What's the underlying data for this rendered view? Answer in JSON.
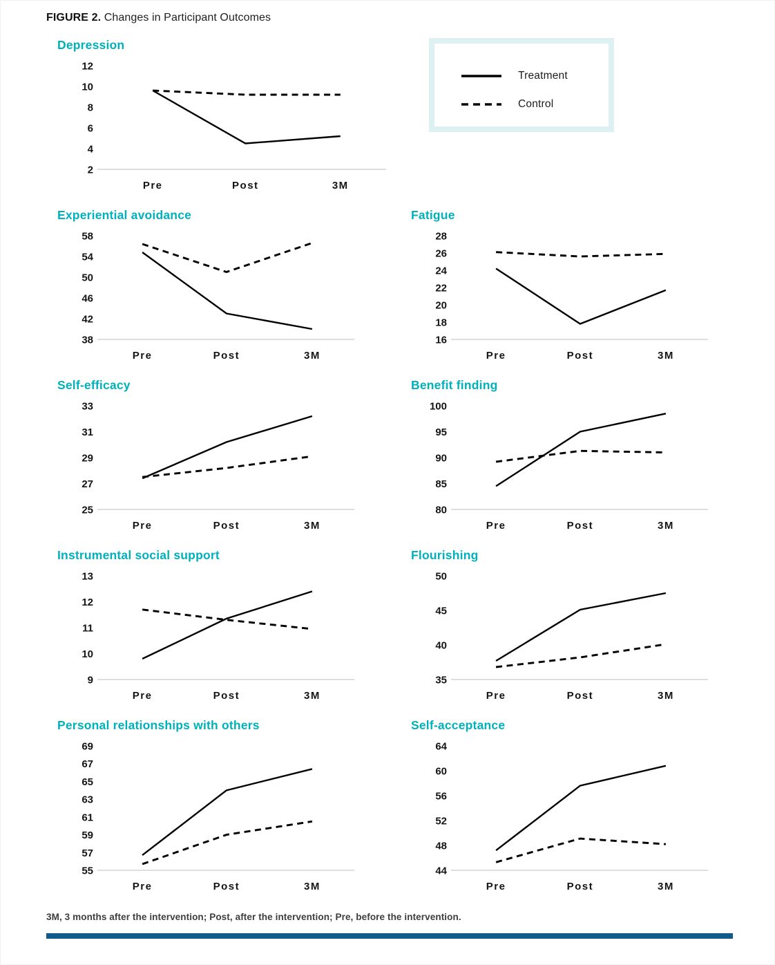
{
  "figure": {
    "label": "FIGURE 2.",
    "title": "Changes in Participant Outcomes"
  },
  "legend": {
    "treatment_label": "Treatment",
    "control_label": "Control"
  },
  "footnote": "3M, 3 months after the intervention; Post, after the intervention; Pre, before the intervention.",
  "colors": {
    "chart_title_accent": "#00b1bc",
    "legend_border": "#ddf0f2",
    "bottom_bar": "#135a8c",
    "series_line": "#000000",
    "axis_line": "#c9c9c9"
  },
  "chart_data": [
    {
      "type": "line",
      "title": "Depression",
      "x": [
        "Pre",
        "Post",
        "3M"
      ],
      "ylim": [
        2,
        12
      ],
      "ytick_step": 2,
      "grid": false,
      "series": [
        {
          "name": "Treatment",
          "style": "solid",
          "values": [
            9.6,
            4.5,
            5.2
          ]
        },
        {
          "name": "Control",
          "style": "dashed",
          "values": [
            9.6,
            9.2,
            9.2
          ]
        }
      ]
    },
    {
      "type": "line",
      "title": "Experiential avoidance",
      "x": [
        "Pre",
        "Post",
        "3M"
      ],
      "ylim": [
        38,
        58
      ],
      "ytick_step": 4,
      "grid": false,
      "series": [
        {
          "name": "Treatment",
          "style": "solid",
          "values": [
            54.8,
            43.0,
            40.0
          ]
        },
        {
          "name": "Control",
          "style": "dashed",
          "values": [
            56.4,
            51.0,
            56.6
          ]
        }
      ]
    },
    {
      "type": "line",
      "title": "Fatigue",
      "x": [
        "Pre",
        "Post",
        "3M"
      ],
      "ylim": [
        16,
        28
      ],
      "ytick_step": 2,
      "grid": false,
      "series": [
        {
          "name": "Treatment",
          "style": "solid",
          "values": [
            24.2,
            17.8,
            21.7
          ]
        },
        {
          "name": "Control",
          "style": "dashed",
          "values": [
            26.1,
            25.6,
            25.9
          ]
        }
      ]
    },
    {
      "type": "line",
      "title": "Self-efficacy",
      "x": [
        "Pre",
        "Post",
        "3M"
      ],
      "ylim": [
        25,
        33
      ],
      "ytick_step": 2,
      "grid": false,
      "series": [
        {
          "name": "Treatment",
          "style": "solid",
          "values": [
            27.4,
            30.2,
            32.2
          ]
        },
        {
          "name": "Control",
          "style": "dashed",
          "values": [
            27.5,
            28.2,
            29.1
          ]
        }
      ]
    },
    {
      "type": "line",
      "title": "Benefit finding",
      "x": [
        "Pre",
        "Post",
        "3M"
      ],
      "ylim": [
        80,
        100
      ],
      "ytick_step": 5,
      "grid": false,
      "series": [
        {
          "name": "Treatment",
          "style": "solid",
          "values": [
            84.5,
            95.0,
            98.5
          ]
        },
        {
          "name": "Control",
          "style": "dashed",
          "values": [
            89.2,
            91.3,
            91.0
          ]
        }
      ]
    },
    {
      "type": "line",
      "title": "Instrumental social support",
      "x": [
        "Pre",
        "Post",
        "3M"
      ],
      "ylim": [
        9,
        13
      ],
      "ytick_step": 1,
      "grid": false,
      "series": [
        {
          "name": "Treatment",
          "style": "solid",
          "values": [
            9.8,
            11.35,
            12.4
          ]
        },
        {
          "name": "Control",
          "style": "dashed",
          "values": [
            11.7,
            11.3,
            10.95
          ]
        }
      ]
    },
    {
      "type": "line",
      "title": "Flourishing",
      "x": [
        "Pre",
        "Post",
        "3M"
      ],
      "ylim": [
        35,
        50
      ],
      "ytick_step": 5,
      "grid": false,
      "series": [
        {
          "name": "Treatment",
          "style": "solid",
          "values": [
            37.7,
            45.1,
            47.5
          ]
        },
        {
          "name": "Control",
          "style": "dashed",
          "values": [
            36.8,
            38.2,
            40.1
          ]
        }
      ]
    },
    {
      "type": "line",
      "title": "Personal relationships with others",
      "x": [
        "Pre",
        "Post",
        "3M"
      ],
      "ylim": [
        55,
        69
      ],
      "ytick_step": 2,
      "grid": false,
      "series": [
        {
          "name": "Treatment",
          "style": "solid",
          "values": [
            56.7,
            64.0,
            66.4
          ]
        },
        {
          "name": "Control",
          "style": "dashed",
          "values": [
            55.7,
            59.0,
            60.5
          ]
        }
      ]
    },
    {
      "type": "line",
      "title": "Self-acceptance",
      "x": [
        "Pre",
        "Post",
        "3M"
      ],
      "ylim": [
        44,
        64
      ],
      "ytick_step": 4,
      "grid": false,
      "series": [
        {
          "name": "Treatment",
          "style": "solid",
          "values": [
            47.2,
            57.6,
            60.8
          ]
        },
        {
          "name": "Control",
          "style": "dashed",
          "values": [
            45.3,
            49.1,
            48.2
          ]
        }
      ]
    }
  ]
}
